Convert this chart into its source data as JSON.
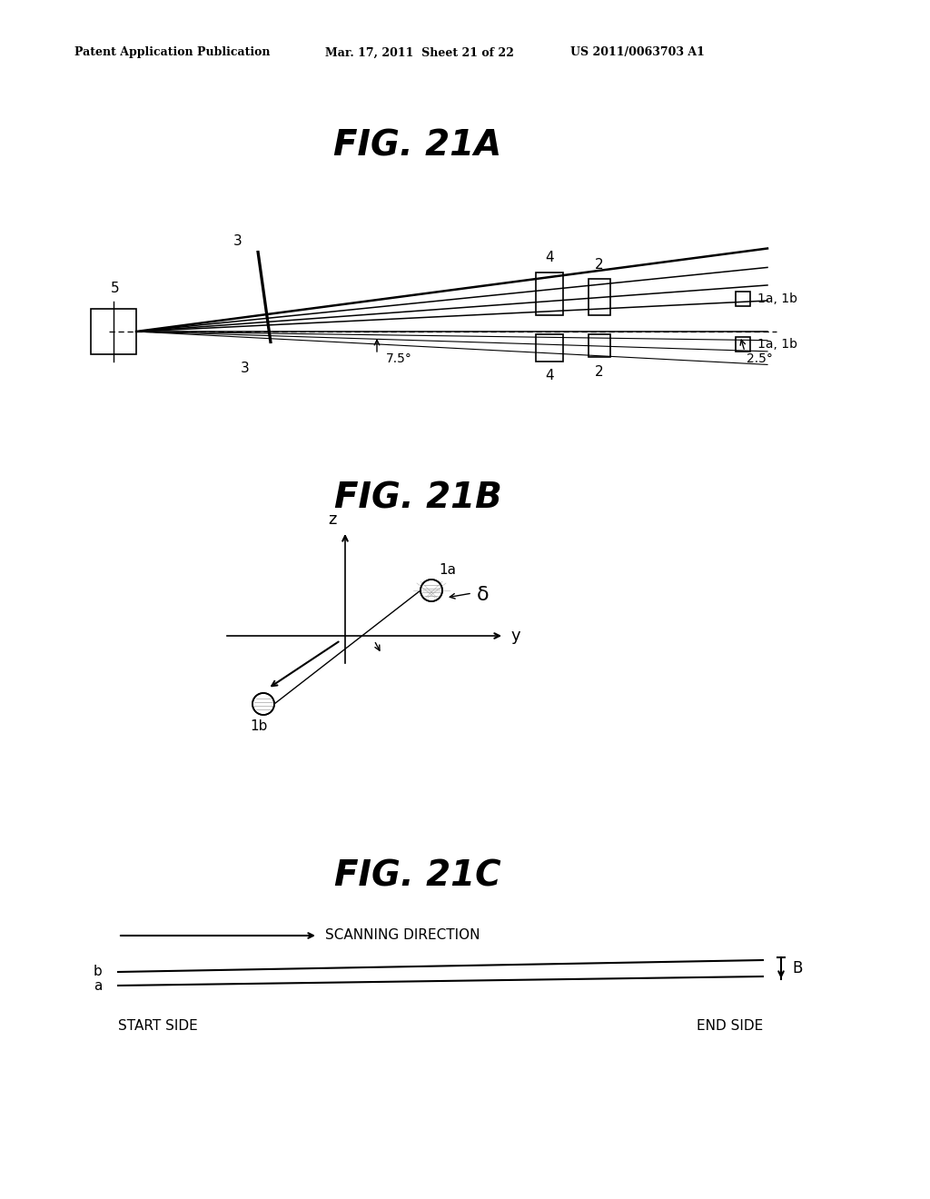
{
  "bg_color": "#ffffff",
  "header_left": "Patent Application Publication",
  "header_center": "Mar. 17, 2011  Sheet 21 of 22",
  "header_right": "US 2011/0063703 A1",
  "fig21a_title": "FIG. 21A",
  "fig21b_title": "FIG. 21B",
  "fig21c_title": "FIG. 21C",
  "fig21c_scanning_label": "SCANNING DIRECTION",
  "fig21c_start_label": "START SIDE",
  "fig21c_end_label": "END SIDE",
  "fig21c_b_label": "B",
  "fig21c_line_b_label": "b",
  "fig21c_line_a_label": "a"
}
